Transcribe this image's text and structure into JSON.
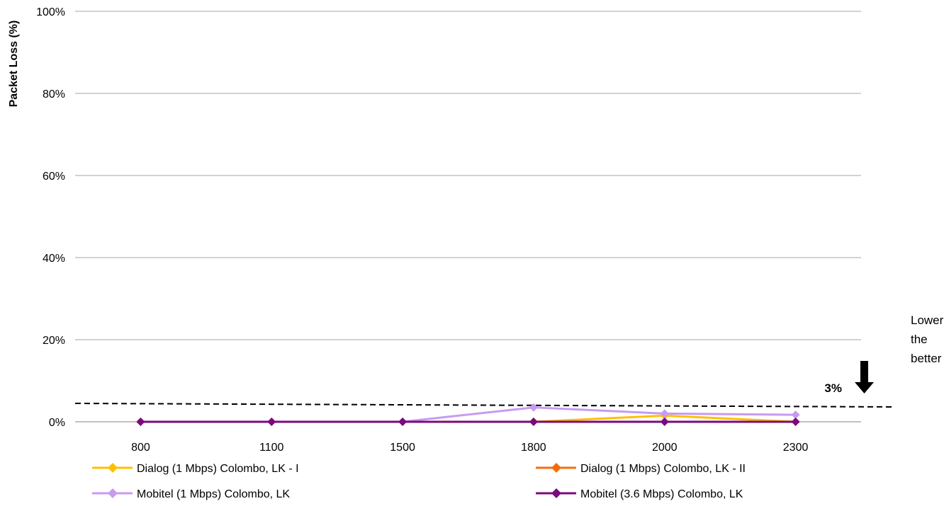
{
  "chart_data": {
    "type": "line",
    "ylabel": "Packet Loss (%)",
    "xlabel": "",
    "categories": [
      "800",
      "1100",
      "1500",
      "1800",
      "2000",
      "2300"
    ],
    "ylim": [
      0,
      100
    ],
    "yticks": [
      "0%",
      "20%",
      "40%",
      "60%",
      "80%",
      "100%"
    ],
    "grid": true,
    "legend_position": "bottom",
    "series": [
      {
        "name": "Dialog (1 Mbps) Colombo, LK - I",
        "color": "#FFC000",
        "values": [
          0,
          0,
          0,
          0,
          1.5,
          0
        ]
      },
      {
        "name": "Dialog (1 Mbps) Colombo, LK - II",
        "color": "#F36C0E",
        "values": [
          0,
          0,
          0,
          0,
          0,
          0
        ]
      },
      {
        "name": "Mobitel (1 Mbps) Colombo, LK",
        "color": "#C89BF0",
        "values": [
          0,
          0,
          0,
          3.5,
          2,
          1.7
        ]
      },
      {
        "name": "Mobitel (3.6 Mbps) Colombo, LK",
        "color": "#7B0A7D",
        "values": [
          0,
          0,
          0,
          0,
          0,
          0
        ]
      }
    ],
    "threshold": {
      "label": "3%"
    },
    "annotation": {
      "lines": [
        "Lower",
        "the",
        "better"
      ]
    }
  }
}
